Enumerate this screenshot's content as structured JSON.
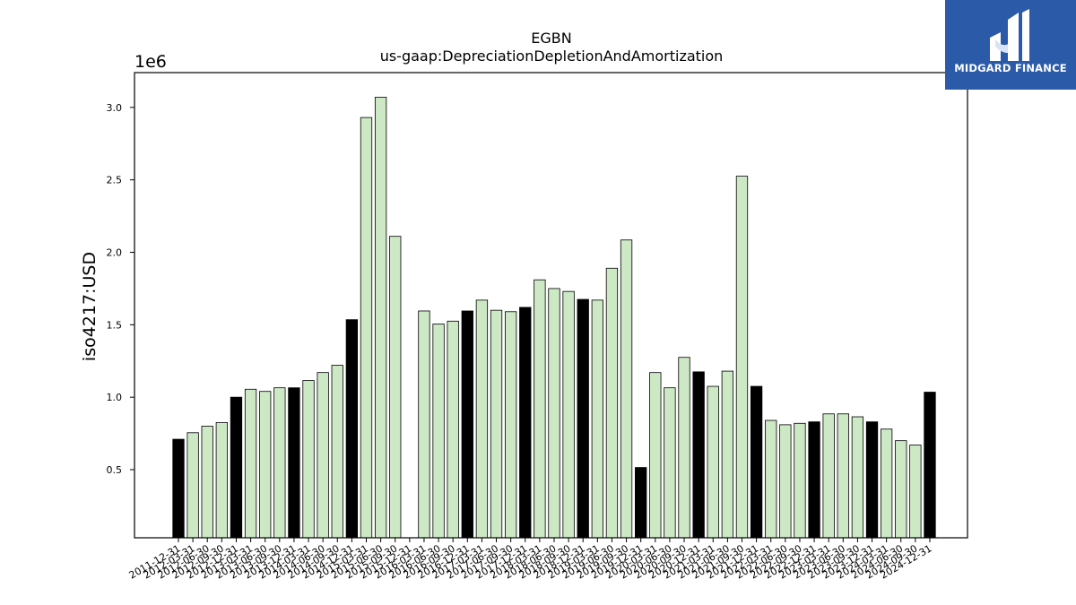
{
  "logo": {
    "text": "MIDGARD FINANCE",
    "background": "#2b5aa8"
  },
  "chart_data": {
    "type": "bar",
    "title": "EGBN",
    "subtitle": "us-gaap:DepreciationDepletionAndAmortization",
    "ylabel": "iso4217:USD",
    "xlabel": "",
    "y_multiplier_label": "1e6",
    "ylim": [
      0.03,
      3.24
    ],
    "yticks": [
      0.5,
      1.0,
      1.5,
      2.0,
      2.5,
      3.0
    ],
    "ytick_labels": [
      "0.5",
      "1.0",
      "1.5",
      "2.0",
      "2.5",
      "3.0"
    ],
    "grid": false,
    "legend": "none",
    "colors": {
      "annual": "#000000",
      "quarterly": "#cce8c4",
      "edge": "#000000"
    },
    "bars": [
      {
        "label": "2011-12-31",
        "value": 0.71,
        "annual": true
      },
      {
        "label": "2012-03-31",
        "value": 0.755,
        "annual": false
      },
      {
        "label": "2012-06-30",
        "value": 0.8,
        "annual": false
      },
      {
        "label": "2012-09-30",
        "value": 0.825,
        "annual": false
      },
      {
        "label": "2012-12-31",
        "value": 1.0,
        "annual": true
      },
      {
        "label": "2013-03-31",
        "value": 1.055,
        "annual": false
      },
      {
        "label": "2013-06-30",
        "value": 1.04,
        "annual": false
      },
      {
        "label": "2013-09-30",
        "value": 1.065,
        "annual": false
      },
      {
        "label": "2013-12-31",
        "value": 1.065,
        "annual": true
      },
      {
        "label": "2014-03-31",
        "value": 1.115,
        "annual": false
      },
      {
        "label": "2014-06-30",
        "value": 1.17,
        "annual": false
      },
      {
        "label": "2014-09-30",
        "value": 1.22,
        "annual": false
      },
      {
        "label": "2014-12-31",
        "value": 1.535,
        "annual": true
      },
      {
        "label": "2015-03-31",
        "value": 2.93,
        "annual": false
      },
      {
        "label": "2015-06-30",
        "value": 3.07,
        "annual": false
      },
      {
        "label": "2015-09-30",
        "value": 2.11,
        "annual": false
      },
      {
        "label": "2015-12-31",
        "value": null,
        "annual": true
      },
      {
        "label": "2016-03-31",
        "value": 1.595,
        "annual": false
      },
      {
        "label": "2016-06-30",
        "value": 1.505,
        "annual": false
      },
      {
        "label": "2016-09-30",
        "value": 1.525,
        "annual": false
      },
      {
        "label": "2016-12-31",
        "value": 1.595,
        "annual": true
      },
      {
        "label": "2017-03-31",
        "value": 1.67,
        "annual": false
      },
      {
        "label": "2017-06-30",
        "value": 1.6,
        "annual": false
      },
      {
        "label": "2017-09-30",
        "value": 1.59,
        "annual": false
      },
      {
        "label": "2017-12-31",
        "value": 1.62,
        "annual": true
      },
      {
        "label": "2018-03-31",
        "value": 1.81,
        "annual": false
      },
      {
        "label": "2018-06-30",
        "value": 1.75,
        "annual": false
      },
      {
        "label": "2018-09-30",
        "value": 1.73,
        "annual": false
      },
      {
        "label": "2018-12-31",
        "value": 1.675,
        "annual": true
      },
      {
        "label": "2019-03-31",
        "value": 1.67,
        "annual": false
      },
      {
        "label": "2019-06-30",
        "value": 1.89,
        "annual": false
      },
      {
        "label": "2019-09-30",
        "value": 2.085,
        "annual": false
      },
      {
        "label": "2019-12-31",
        "value": 0.515,
        "annual": true
      },
      {
        "label": "2020-03-31",
        "value": 1.17,
        "annual": false
      },
      {
        "label": "2020-06-30",
        "value": 1.065,
        "annual": false
      },
      {
        "label": "2020-09-30",
        "value": 1.275,
        "annual": false
      },
      {
        "label": "2020-12-31",
        "value": 1.175,
        "annual": true
      },
      {
        "label": "2021-03-31",
        "value": 1.075,
        "annual": false
      },
      {
        "label": "2021-06-30",
        "value": 1.18,
        "annual": false
      },
      {
        "label": "2021-09-30",
        "value": 2.525,
        "annual": false
      },
      {
        "label": "2021-12-31",
        "value": 1.075,
        "annual": true
      },
      {
        "label": "2022-03-31",
        "value": 0.84,
        "annual": false
      },
      {
        "label": "2022-06-30",
        "value": 0.81,
        "annual": false
      },
      {
        "label": "2022-09-30",
        "value": 0.82,
        "annual": false
      },
      {
        "label": "2022-12-31",
        "value": 0.83,
        "annual": true
      },
      {
        "label": "2023-03-31",
        "value": 0.885,
        "annual": false
      },
      {
        "label": "2023-06-30",
        "value": 0.885,
        "annual": false
      },
      {
        "label": "2023-09-30",
        "value": 0.865,
        "annual": false
      },
      {
        "label": "2023-12-31",
        "value": 0.83,
        "annual": true
      },
      {
        "label": "2024-03-31",
        "value": 0.78,
        "annual": false
      },
      {
        "label": "2024-06-30",
        "value": 0.7,
        "annual": false
      },
      {
        "label": "2024-09-30",
        "value": 0.67,
        "annual": false
      },
      {
        "label": "2024-12-31",
        "value": 1.035,
        "annual": true
      }
    ]
  }
}
